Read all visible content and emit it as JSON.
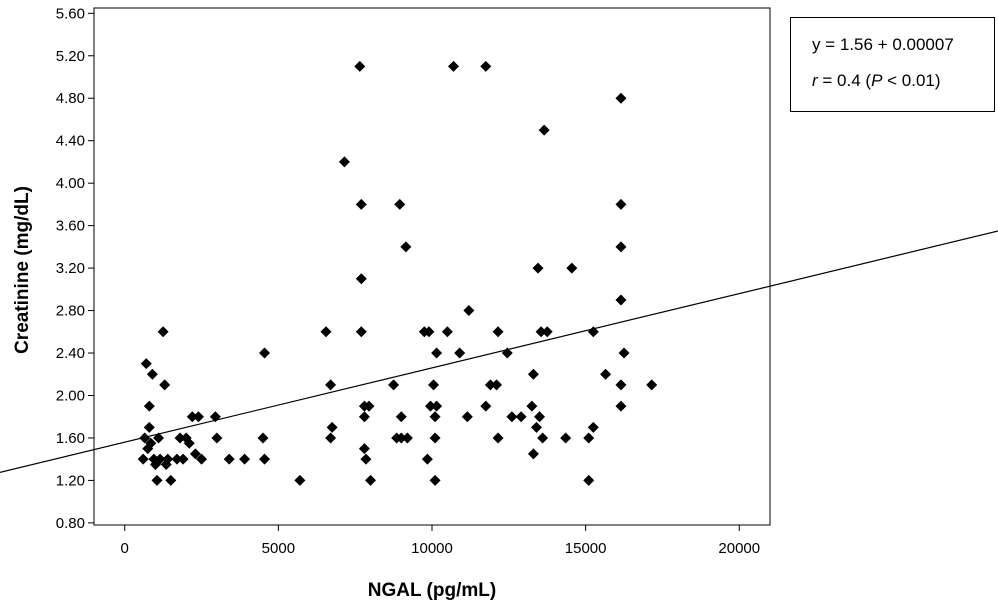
{
  "chart_data": {
    "type": "scatter",
    "xlabel": "NGAL (pg/mL)",
    "ylabel": "Creatinine (mg/dL)",
    "xlim": [
      -1000,
      21000
    ],
    "ylim": [
      0.78,
      5.65
    ],
    "x_ticks": [
      0,
      5000,
      10000,
      15000,
      20000
    ],
    "x_tick_labels": [
      "0",
      "5000",
      "10000",
      "15000",
      "20000"
    ],
    "y_ticks": [
      0.8,
      1.2,
      1.6,
      2.0,
      2.4,
      2.8,
      3.2,
      3.6,
      4.0,
      4.4,
      4.8,
      5.2,
      5.6
    ],
    "y_tick_labels": [
      "0.80",
      "1.20",
      "1.60",
      "2.00",
      "2.40",
      "2.80",
      "3.20",
      "3.60",
      "4.00",
      "4.40",
      "4.80",
      "5.20",
      "5.60"
    ],
    "grid": false,
    "marker": "diamond",
    "marker_color": "#000000",
    "points": [
      [
        600,
        1.4
      ],
      [
        650,
        1.6
      ],
      [
        700,
        2.3
      ],
      [
        750,
        1.5
      ],
      [
        800,
        1.7
      ],
      [
        800,
        1.9
      ],
      [
        900,
        2.2
      ],
      [
        850,
        1.55
      ],
      [
        950,
        1.4
      ],
      [
        1000,
        1.35
      ],
      [
        1050,
        1.2
      ],
      [
        1100,
        1.6
      ],
      [
        1150,
        1.4
      ],
      [
        1250,
        2.6
      ],
      [
        1300,
        2.1
      ],
      [
        1350,
        1.35
      ],
      [
        1400,
        1.4
      ],
      [
        1500,
        1.2
      ],
      [
        1700,
        1.4
      ],
      [
        1800,
        1.6
      ],
      [
        1900,
        1.4
      ],
      [
        2000,
        1.6
      ],
      [
        2100,
        1.55
      ],
      [
        2200,
        1.8
      ],
      [
        2300,
        1.45
      ],
      [
        2400,
        1.8
      ],
      [
        2500,
        1.4
      ],
      [
        2950,
        1.8
      ],
      [
        3000,
        1.6
      ],
      [
        3400,
        1.4
      ],
      [
        3900,
        1.4
      ],
      [
        4500,
        1.6
      ],
      [
        4550,
        2.4
      ],
      [
        4550,
        1.4
      ],
      [
        5700,
        1.2
      ],
      [
        6550,
        2.6
      ],
      [
        6700,
        2.1
      ],
      [
        6750,
        1.7
      ],
      [
        6700,
        1.6
      ],
      [
        7150,
        4.2
      ],
      [
        7650,
        5.1
      ],
      [
        7700,
        3.8
      ],
      [
        7700,
        3.1
      ],
      [
        7700,
        2.6
      ],
      [
        7800,
        1.9
      ],
      [
        7800,
        1.8
      ],
      [
        7800,
        1.5
      ],
      [
        7850,
        1.4
      ],
      [
        7950,
        1.9
      ],
      [
        8000,
        1.2
      ],
      [
        8750,
        2.1
      ],
      [
        8850,
        1.6
      ],
      [
        8950,
        3.8
      ],
      [
        9000,
        1.8
      ],
      [
        9000,
        1.6
      ],
      [
        9150,
        3.4
      ],
      [
        9200,
        1.6
      ],
      [
        9750,
        2.6
      ],
      [
        9850,
        1.4
      ],
      [
        9900,
        2.6
      ],
      [
        9950,
        1.9
      ],
      [
        10050,
        2.1
      ],
      [
        10100,
        1.8
      ],
      [
        10100,
        1.6
      ],
      [
        10100,
        1.2
      ],
      [
        10150,
        2.4
      ],
      [
        10150,
        1.9
      ],
      [
        10500,
        2.6
      ],
      [
        10700,
        5.1
      ],
      [
        10900,
        2.4
      ],
      [
        11150,
        1.8
      ],
      [
        11200,
        2.8
      ],
      [
        11750,
        5.1
      ],
      [
        11750,
        1.9
      ],
      [
        11900,
        2.1
      ],
      [
        12100,
        2.1
      ],
      [
        12150,
        2.6
      ],
      [
        12150,
        1.6
      ],
      [
        12450,
        2.4
      ],
      [
        12600,
        1.8
      ],
      [
        12900,
        1.8
      ],
      [
        13250,
        1.9
      ],
      [
        13300,
        2.2
      ],
      [
        13300,
        1.45
      ],
      [
        13400,
        1.7
      ],
      [
        13450,
        3.2
      ],
      [
        13500,
        1.8
      ],
      [
        13550,
        2.6
      ],
      [
        13600,
        1.6
      ],
      [
        13650,
        4.5
      ],
      [
        13750,
        2.6
      ],
      [
        14350,
        1.6
      ],
      [
        14550,
        3.2
      ],
      [
        15100,
        1.6
      ],
      [
        15100,
        1.2
      ],
      [
        15250,
        2.6
      ],
      [
        15250,
        1.7
      ],
      [
        15650,
        2.2
      ],
      [
        16150,
        4.8
      ],
      [
        16150,
        3.8
      ],
      [
        16150,
        3.4
      ],
      [
        16150,
        2.9
      ],
      [
        16150,
        2.1
      ],
      [
        16150,
        1.9
      ],
      [
        16250,
        2.4
      ],
      [
        17150,
        2.1
      ]
    ],
    "fit_line": {
      "intercept": 1.56,
      "slope": 7e-05
    },
    "annotation": {
      "equation": "y = 1.56 + 0.00007",
      "r_prefix": "r",
      "r_text": " = 0.4 (",
      "p_prefix": "P",
      "p_text": " < 0.01)"
    },
    "legend_placement": "right"
  }
}
